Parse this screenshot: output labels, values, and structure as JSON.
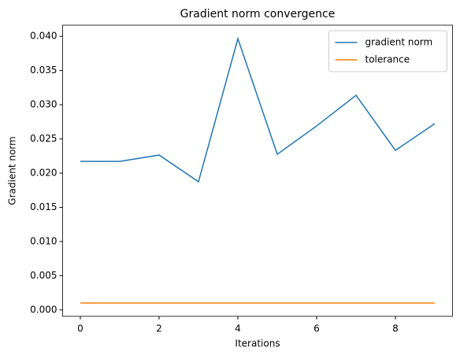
{
  "chart_data": {
    "type": "line",
    "title": "Gradient norm convergence",
    "x_label": "Iterations",
    "y_label": "Gradient norm",
    "x": [
      0,
      1,
      2,
      3,
      4,
      5,
      6,
      7,
      8,
      9
    ],
    "series": [
      {
        "name": "gradient norm",
        "color": "#1f77b4",
        "values": [
          0.02172,
          0.02172,
          0.02264,
          0.01874,
          0.03966,
          0.02276,
          0.0269,
          0.03138,
          0.02333,
          0.02724
        ]
      },
      {
        "name": "tolerance",
        "color": "#ff7f0e",
        "values": [
          0.001,
          0.001,
          0.001,
          0.001,
          0.001,
          0.001,
          0.001,
          0.001,
          0.001,
          0.001
        ]
      }
    ],
    "xlim": [
      -0.45,
      9.45
    ],
    "ylim": [
      -0.000935,
      0.041635
    ],
    "xticks": [
      0,
      2,
      4,
      6,
      8
    ],
    "yticks": [
      {
        "value": 0,
        "label": "0.000"
      },
      {
        "value": 0.005,
        "label": "0.005"
      },
      {
        "value": 0.01,
        "label": "0.010"
      },
      {
        "value": 0.015,
        "label": "0.015"
      },
      {
        "value": 0.02,
        "label": "0.020"
      },
      {
        "value": 0.025,
        "label": "0.025"
      },
      {
        "value": 0.03,
        "label": "0.030"
      },
      {
        "value": 0.035,
        "label": "0.035"
      },
      {
        "value": 0.04,
        "label": "0.040"
      }
    ],
    "legend": "upper right",
    "grid": false
  }
}
